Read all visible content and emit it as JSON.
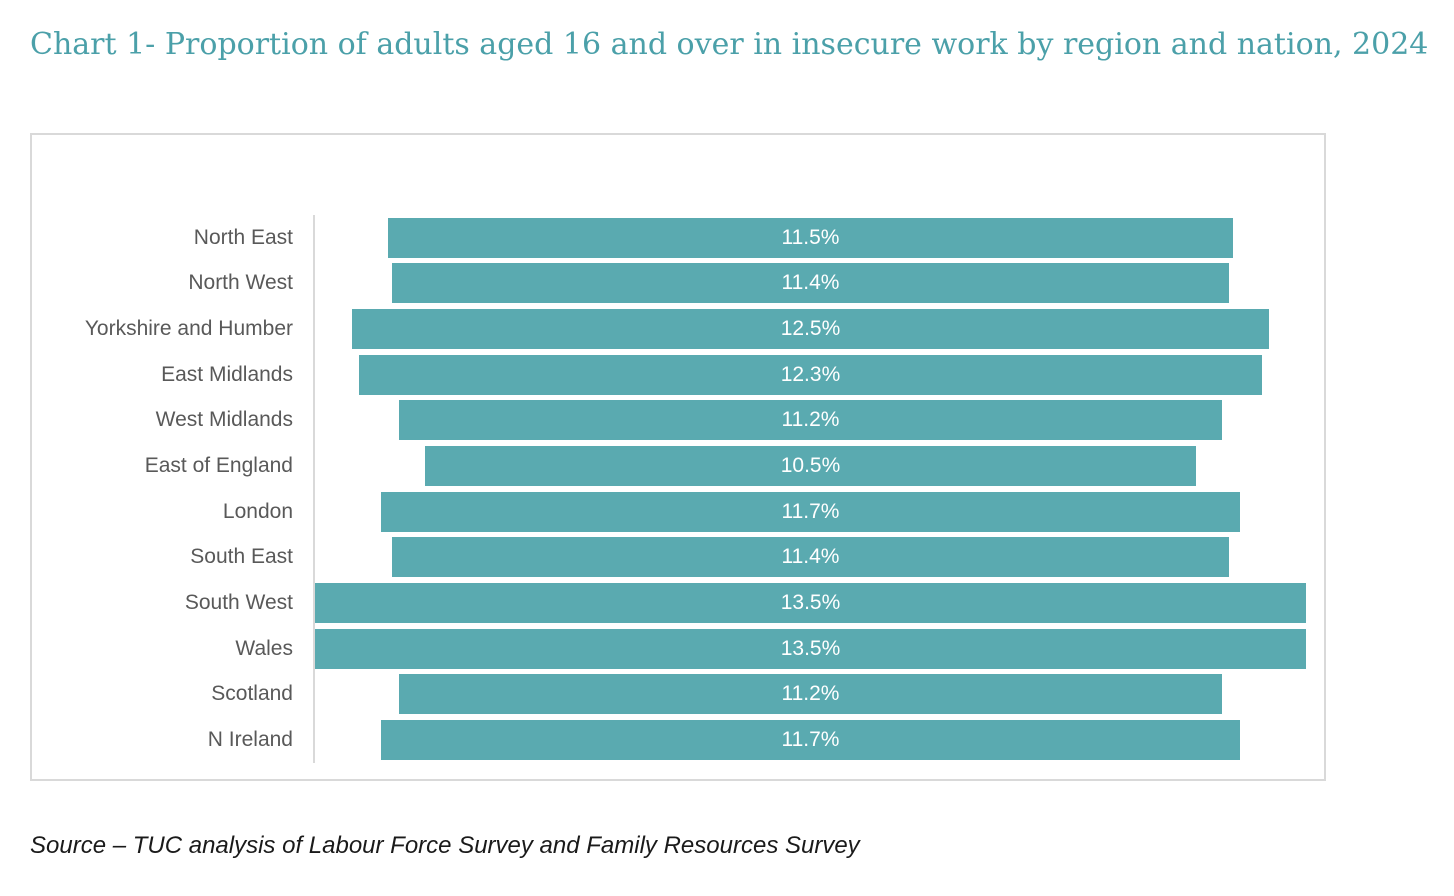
{
  "title": "Chart 1- Proportion of adults aged 16 and over in insecure work by region and nation, 2024",
  "source_note": "Source – TUC analysis of Labour Force Survey and Family Resources Survey",
  "colors": {
    "bar": "#5AAAB0",
    "title": "#4BA0A9",
    "category_label": "#595959",
    "value_label": "#FFFFFF",
    "frame_border": "#D9D9D9",
    "axis_line": "#D9D9D9",
    "background": "#FFFFFF"
  },
  "chart_data": {
    "type": "bar",
    "orientation": "horizontal",
    "layout": "funnel-centered-bars",
    "title": "Chart 1- Proportion of adults aged 16 and over in insecure work by region and nation, 2024",
    "xlabel": "",
    "ylabel": "",
    "unit": "%",
    "grid": false,
    "legend": false,
    "value_max": 13.5,
    "categories": [
      "North East",
      "North West",
      "Yorkshire and Humber",
      "East Midlands",
      "West Midlands",
      "East of England",
      "London",
      "South East",
      "South West",
      "Wales",
      "Scotland",
      "N Ireland"
    ],
    "values": [
      11.5,
      11.4,
      12.5,
      12.3,
      11.2,
      10.5,
      11.7,
      11.4,
      13.5,
      13.5,
      11.2,
      11.7
    ],
    "value_labels": [
      "11.5%",
      "11.4%",
      "12.5%",
      "12.3%",
      "11.2%",
      "10.5%",
      "11.7%",
      "11.4%",
      "13.5%",
      "13.5%",
      "11.2%",
      "11.7%"
    ]
  }
}
